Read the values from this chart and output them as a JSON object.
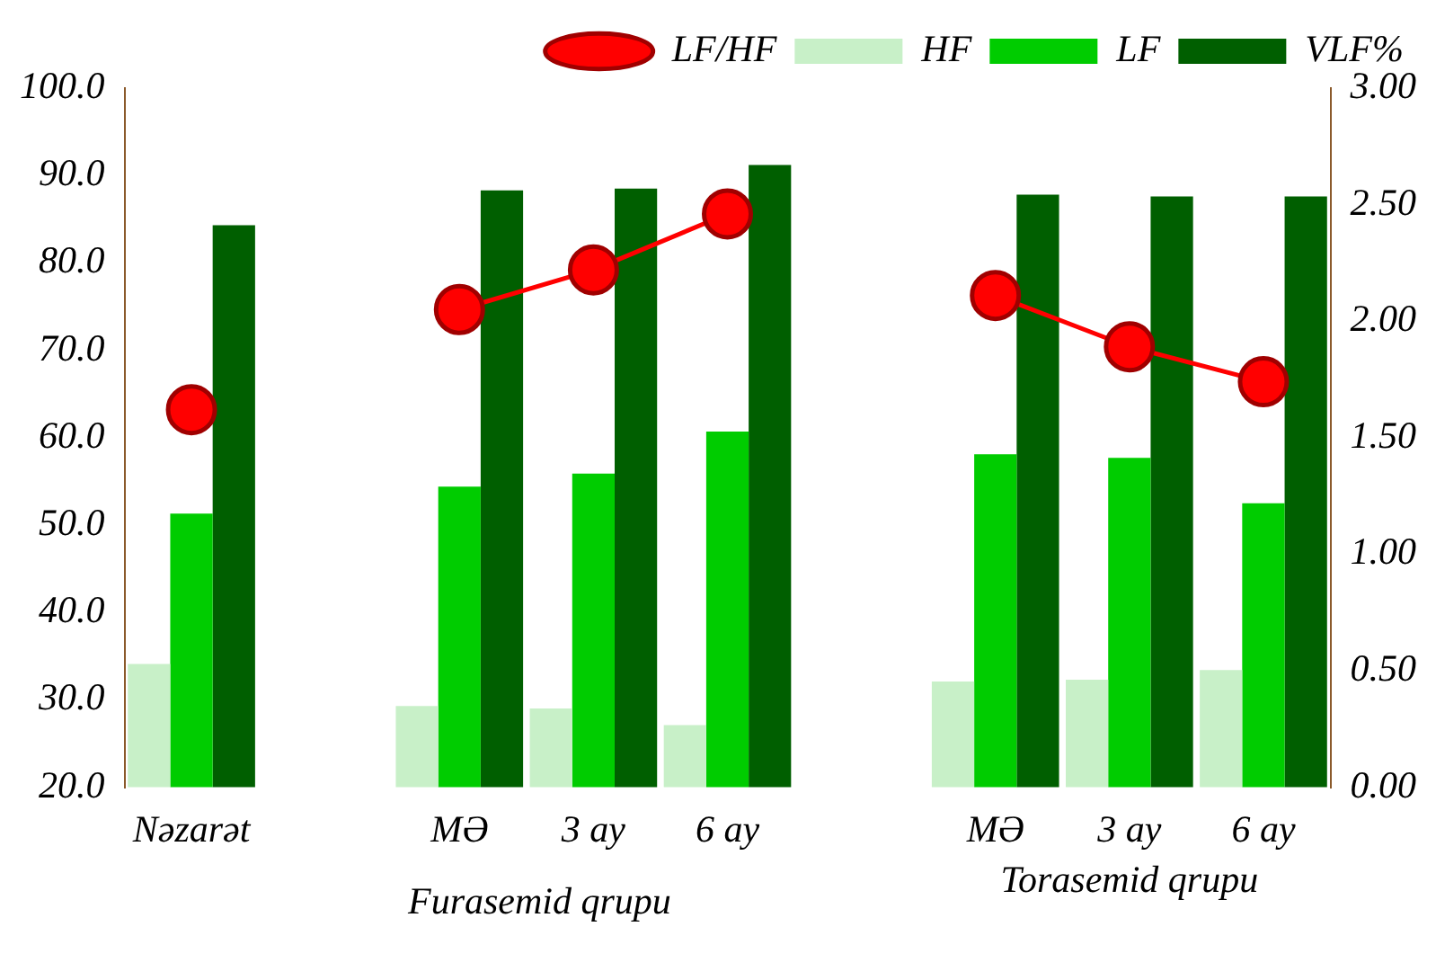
{
  "chart_data": {
    "type": "bar",
    "categories": [
      "Nəzarət",
      null,
      "MƏ",
      "3 ay",
      "6 ay",
      null,
      "MƏ",
      "3 ay",
      "6 ay"
    ],
    "series": [
      {
        "name": "HF",
        "color": "#c8f0c8",
        "values": [
          34.1,
          null,
          29.3,
          29.0,
          27.1,
          null,
          32.1,
          32.3,
          33.4
        ]
      },
      {
        "name": "LF",
        "color": "#00cc00",
        "values": [
          51.3,
          null,
          54.4,
          55.9,
          60.7,
          null,
          58.1,
          57.7,
          52.5
        ]
      },
      {
        "name": "VLF%",
        "color": "#005f00",
        "values": [
          84.3,
          null,
          88.3,
          88.5,
          91.2,
          null,
          87.8,
          87.6,
          87.6
        ]
      },
      {
        "name": "LF/HF",
        "type": "line",
        "axis": "y2",
        "color": "#ff0000",
        "values": [
          1.62,
          null,
          2.05,
          2.22,
          2.46,
          null,
          2.11,
          1.89,
          1.74
        ]
      }
    ],
    "ylim": [
      20,
      100
    ],
    "yticks": [
      {
        "value": 20,
        "label": "20.0"
      },
      {
        "value": 30,
        "label": "30.0"
      },
      {
        "value": 40,
        "label": "40.0"
      },
      {
        "value": 50,
        "label": "50.0"
      },
      {
        "value": 60,
        "label": "60.0"
      },
      {
        "value": 70,
        "label": "70.0"
      },
      {
        "value": 80,
        "label": "80.0"
      },
      {
        "value": 90,
        "label": "90.0"
      },
      {
        "value": 100,
        "label": "100.0"
      }
    ],
    "y2lim": [
      0,
      3
    ],
    "y2ticks": [
      {
        "value": 0,
        "label": "0.00"
      },
      {
        "value": 0.5,
        "label": "0.50"
      },
      {
        "value": 1,
        "label": "1.00"
      },
      {
        "value": 1.5,
        "label": "1.50"
      },
      {
        "value": 2,
        "label": "2.00"
      },
      {
        "value": 2.5,
        "label": "2.50"
      },
      {
        "value": 3,
        "label": "3.00"
      }
    ],
    "annotations": [
      "Furasemid qrupu",
      "Torasemid qrupu"
    ],
    "grid": false,
    "legend": "top",
    "marker": "circle",
    "line_style": "solid"
  }
}
